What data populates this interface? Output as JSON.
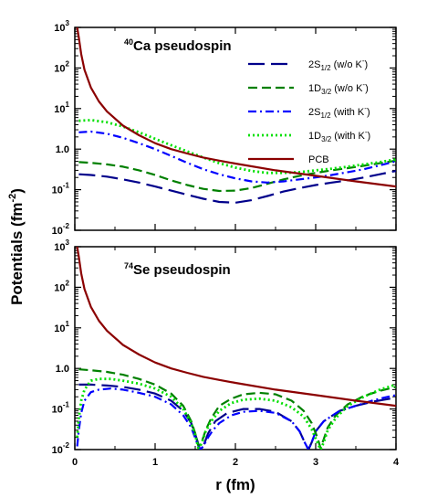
{
  "chart_data": [
    {
      "type": "line",
      "title_sup": "40",
      "title": "Ca pseudospin",
      "xlim": [
        0,
        4
      ],
      "ylim": [
        0.01,
        1000
      ],
      "yscale": "log",
      "xticks": [
        "0",
        "1",
        "2",
        "3",
        "4"
      ],
      "yticks": [
        {
          "base": "10",
          "exp": "3"
        },
        {
          "base": "10",
          "exp": "2"
        },
        {
          "base": "10",
          "exp": "1"
        },
        {
          "base": "1.0",
          "exp": "0"
        },
        {
          "base": "10",
          "exp": "-1"
        },
        {
          "base": "10",
          "exp": "-2"
        }
      ],
      "legend_position": "top-right",
      "series": [
        {
          "name": "2S",
          "sub": "1/2",
          "suffix": " (w/o K",
          "sup": "-",
          "end": ")",
          "color": "#00008B",
          "dash": "long-dash",
          "x": [
            0.05,
            0.2,
            0.4,
            0.6,
            0.8,
            1.0,
            1.2,
            1.4,
            1.6,
            1.8,
            2.0,
            2.2,
            2.4,
            2.6,
            2.8,
            3.0,
            3.2,
            3.4,
            3.6,
            3.8,
            4.0
          ],
          "y": [
            0.24,
            0.23,
            0.21,
            0.18,
            0.15,
            0.12,
            0.095,
            0.075,
            0.06,
            0.05,
            0.048,
            0.055,
            0.07,
            0.09,
            0.11,
            0.13,
            0.15,
            0.17,
            0.2,
            0.24,
            0.29
          ]
        },
        {
          "name": "1D",
          "sub": "3/2",
          "suffix": " (w/o K",
          "sup": "-",
          "end": ")",
          "color": "#008000",
          "dash": "dash",
          "x": [
            0.05,
            0.2,
            0.4,
            0.6,
            0.8,
            1.0,
            1.2,
            1.4,
            1.6,
            1.8,
            2.0,
            2.2,
            2.4,
            2.6,
            2.8,
            3.0,
            3.2,
            3.4,
            3.6,
            3.8,
            4.0
          ],
          "y": [
            0.48,
            0.46,
            0.42,
            0.37,
            0.3,
            0.23,
            0.17,
            0.13,
            0.105,
            0.093,
            0.095,
            0.11,
            0.14,
            0.18,
            0.22,
            0.26,
            0.3,
            0.34,
            0.39,
            0.45,
            0.52
          ]
        },
        {
          "name": "2S",
          "sub": "1/2",
          "suffix": " (with K",
          "sup": "-",
          "end": ")",
          "color": "#0000FF",
          "dash": "dash-dot",
          "x": [
            0.05,
            0.2,
            0.4,
            0.6,
            0.8,
            1.0,
            1.2,
            1.4,
            1.6,
            1.8,
            2.0,
            2.2,
            2.4,
            2.6,
            2.8,
            3.0,
            3.2,
            3.4,
            3.6,
            3.8,
            4.0
          ],
          "y": [
            2.6,
            2.7,
            2.4,
            1.9,
            1.4,
            1.0,
            0.68,
            0.46,
            0.32,
            0.24,
            0.19,
            0.16,
            0.15,
            0.16,
            0.18,
            0.2,
            0.23,
            0.27,
            0.32,
            0.4,
            0.5
          ]
        },
        {
          "name": "1D",
          "sub": "3/2",
          "suffix": " (with K",
          "sup": "-",
          "end": ")",
          "color": "#00E000",
          "dash": "dot",
          "x": [
            0.05,
            0.2,
            0.4,
            0.6,
            0.8,
            1.0,
            1.2,
            1.4,
            1.6,
            1.8,
            2.0,
            2.2,
            2.4,
            2.6,
            2.8,
            3.0,
            3.2,
            3.4,
            3.6,
            3.8,
            4.0
          ],
          "y": [
            5.0,
            5.2,
            4.6,
            3.6,
            2.6,
            1.8,
            1.25,
            0.88,
            0.62,
            0.45,
            0.35,
            0.29,
            0.26,
            0.26,
            0.27,
            0.3,
            0.33,
            0.37,
            0.42,
            0.48,
            0.56
          ]
        },
        {
          "name": "PCB",
          "sub": "",
          "suffix": "",
          "sup": "",
          "end": "",
          "color": "#8B0000",
          "dash": "solid",
          "x": [
            0.03,
            0.05,
            0.08,
            0.12,
            0.2,
            0.3,
            0.4,
            0.6,
            0.8,
            1.0,
            1.2,
            1.4,
            1.6,
            1.8,
            2.0,
            2.5,
            3.0,
            3.5,
            4.0
          ],
          "y": [
            1000,
            560,
            220,
            90,
            33,
            15,
            8.5,
            3.8,
            2.2,
            1.4,
            1.0,
            0.78,
            0.62,
            0.52,
            0.44,
            0.3,
            0.22,
            0.16,
            0.12
          ]
        }
      ]
    },
    {
      "type": "line",
      "title_sup": "74",
      "title": "Se pseudospin",
      "xlim": [
        0,
        4
      ],
      "ylim": [
        0.01,
        1000
      ],
      "yscale": "log",
      "xticks": [
        "0",
        "1",
        "2",
        "3",
        "4"
      ],
      "yticks": [
        {
          "base": "10",
          "exp": "3"
        },
        {
          "base": "10",
          "exp": "2"
        },
        {
          "base": "10",
          "exp": "1"
        },
        {
          "base": "1.0",
          "exp": "0"
        },
        {
          "base": "10",
          "exp": "-1"
        },
        {
          "base": "10",
          "exp": "-2"
        }
      ],
      "series": [
        {
          "name": "2S",
          "sub": "1/2",
          "suffix": " (w/o K",
          "sup": "-",
          "end": ")",
          "color": "#00008B",
          "dash": "long-dash",
          "x": [
            0.05,
            0.2,
            0.4,
            0.6,
            0.8,
            1.0,
            1.2,
            1.35,
            1.45,
            1.52,
            1.56,
            1.6,
            1.66,
            1.75,
            1.9,
            2.1,
            2.3,
            2.5,
            2.7,
            2.8,
            2.87,
            2.91,
            2.95,
            3.0,
            3.1,
            3.3,
            3.5,
            3.7,
            3.85,
            4.0
          ],
          "y": [
            0.4,
            0.4,
            0.38,
            0.35,
            0.3,
            0.24,
            0.16,
            0.09,
            0.045,
            0.018,
            0.01,
            0.012,
            0.025,
            0.05,
            0.08,
            0.1,
            0.1,
            0.085,
            0.05,
            0.028,
            0.014,
            0.01,
            0.015,
            0.028,
            0.05,
            0.09,
            0.12,
            0.15,
            0.17,
            0.19
          ]
        },
        {
          "name": "1D",
          "sub": "3/2",
          "suffix": " (w/o K",
          "sup": "-",
          "end": ")",
          "color": "#008000",
          "dash": "dash",
          "x": [
            0.05,
            0.2,
            0.4,
            0.6,
            0.8,
            1.0,
            1.2,
            1.35,
            1.45,
            1.5,
            1.54,
            1.58,
            1.63,
            1.7,
            1.8,
            1.95,
            2.1,
            2.3,
            2.5,
            2.7,
            2.85,
            2.95,
            3.02,
            3.06,
            3.1,
            3.15,
            3.25,
            3.4,
            3.6,
            3.8,
            4.0
          ],
          "y": [
            0.95,
            0.9,
            0.82,
            0.7,
            0.55,
            0.4,
            0.24,
            0.12,
            0.05,
            0.025,
            0.012,
            0.015,
            0.03,
            0.06,
            0.12,
            0.18,
            0.23,
            0.25,
            0.23,
            0.16,
            0.09,
            0.045,
            0.02,
            0.011,
            0.018,
            0.035,
            0.07,
            0.13,
            0.21,
            0.28,
            0.35
          ]
        },
        {
          "name": "2S",
          "sub": "1/2",
          "suffix": " (with K",
          "sup": "-",
          "end": ")",
          "color": "#0000FF",
          "dash": "dash-dot",
          "x": [
            0.03,
            0.05,
            0.08,
            0.12,
            0.2,
            0.3,
            0.45,
            0.6,
            0.8,
            1.0,
            1.2,
            1.35,
            1.45,
            1.52,
            1.56,
            1.6,
            1.66,
            1.72,
            1.8,
            1.95,
            2.1,
            2.3,
            2.5,
            2.7,
            2.8,
            2.87,
            2.91,
            2.95,
            3.0,
            3.1,
            3.3,
            3.5,
            3.7,
            3.85,
            4.0
          ],
          "y": [
            0.012,
            0.03,
            0.08,
            0.16,
            0.26,
            0.3,
            0.32,
            0.3,
            0.25,
            0.2,
            0.13,
            0.07,
            0.035,
            0.015,
            0.01,
            0.012,
            0.02,
            0.03,
            0.045,
            0.07,
            0.085,
            0.09,
            0.08,
            0.05,
            0.028,
            0.014,
            0.01,
            0.015,
            0.028,
            0.05,
            0.09,
            0.12,
            0.16,
            0.19,
            0.22
          ]
        },
        {
          "name": "1D",
          "sub": "3/2",
          "suffix": " (with K",
          "sup": "-",
          "end": ")",
          "color": "#00E000",
          "dash": "dot",
          "x": [
            0.03,
            0.05,
            0.08,
            0.12,
            0.2,
            0.3,
            0.45,
            0.6,
            0.8,
            1.0,
            1.2,
            1.35,
            1.45,
            1.5,
            1.54,
            1.58,
            1.63,
            1.7,
            1.8,
            1.95,
            2.1,
            2.3,
            2.5,
            2.7,
            2.85,
            2.95,
            3.02,
            3.06,
            3.1,
            3.15,
            3.25,
            3.4,
            3.6,
            3.8,
            4.0
          ],
          "y": [
            0.02,
            0.06,
            0.16,
            0.3,
            0.5,
            0.55,
            0.55,
            0.5,
            0.42,
            0.32,
            0.2,
            0.1,
            0.045,
            0.022,
            0.011,
            0.014,
            0.028,
            0.05,
            0.09,
            0.14,
            0.17,
            0.18,
            0.16,
            0.11,
            0.065,
            0.032,
            0.015,
            0.01,
            0.015,
            0.03,
            0.06,
            0.12,
            0.2,
            0.3,
            0.4
          ]
        },
        {
          "name": "PCB",
          "sub": "",
          "suffix": "",
          "sup": "",
          "end": "",
          "color": "#8B0000",
          "dash": "solid",
          "x": [
            0.03,
            0.05,
            0.08,
            0.12,
            0.2,
            0.3,
            0.4,
            0.6,
            0.8,
            1.0,
            1.2,
            1.4,
            1.6,
            1.8,
            2.0,
            2.5,
            3.0,
            3.5,
            4.0
          ],
          "y": [
            1000,
            560,
            220,
            90,
            33,
            15,
            8.5,
            3.8,
            2.2,
            1.4,
            1.0,
            0.78,
            0.62,
            0.52,
            0.44,
            0.3,
            0.22,
            0.16,
            0.12
          ]
        }
      ]
    }
  ],
  "shared_ylabel": "Potentials (fm",
  "shared_ylabel_sup": "-2",
  "shared_ylabel_end": ")",
  "shared_xlabel": "r (fm)"
}
